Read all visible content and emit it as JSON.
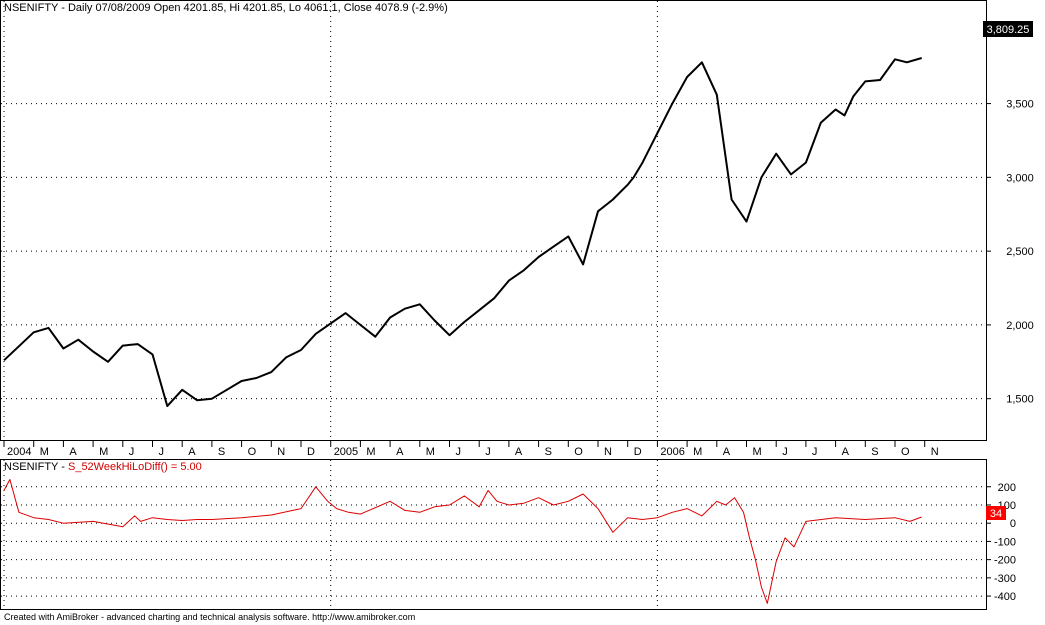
{
  "price_pane": {
    "title": "NSENIFTY - Daily 07/08/2009 Open 4201.85, Hi 4201.85, Lo 4061.1, Close 4078.9 (-2.9%)",
    "last_value_label": "3,809.25",
    "line_color": "#000000"
  },
  "indicator_pane": {
    "symbol_label": "NSENIFTY - ",
    "indicator_label": "S_52WeekHiLoDiff() = 5.00",
    "last_value_label": "34",
    "line_color": "#dd0000",
    "badge_color": "#ff0000"
  },
  "footer": "Created with AmiBroker - advanced charting and technical analysis software. http://www.amibroker.com",
  "chart_data": [
    {
      "type": "line",
      "name": "NSENIFTY",
      "ylim": [
        1220,
        4080
      ],
      "yticks": [
        1500,
        2000,
        2500,
        3000,
        3500
      ],
      "ytick_labels": [
        "1,500",
        "2,000",
        "2,500",
        "3,000",
        "3,500"
      ],
      "x_months": [
        "2004",
        "M",
        "A",
        "M",
        "J",
        "J",
        "A",
        "S",
        "O",
        "N",
        "D",
        "2005",
        "M",
        "A",
        "M",
        "J",
        "J",
        "A",
        "S",
        "O",
        "N",
        "D",
        "2006",
        "M",
        "A",
        "M",
        "J",
        "J",
        "A",
        "S",
        "O",
        "N"
      ],
      "x": [
        0,
        1.0,
        1.5,
        2,
        2.5,
        3,
        3.5,
        4,
        4.5,
        5,
        5.5,
        6,
        6.5,
        7,
        7.5,
        8,
        8.5,
        9,
        9.5,
        10,
        10.5,
        11,
        11.5,
        12,
        12.5,
        13,
        13.5,
        14,
        14.5,
        15,
        15.5,
        16,
        16.5,
        17,
        17.5,
        18,
        18.5,
        19,
        19.5,
        20,
        20.5,
        21,
        21.2,
        21.5,
        22,
        22.5,
        23,
        23.5,
        24,
        24.5,
        25,
        25.5,
        26,
        26.5,
        27,
        27.5,
        28,
        28.3,
        28.6,
        29,
        29.5,
        30,
        30.4,
        30.9
      ],
      "values": [
        1760,
        1950,
        1980,
        1840,
        1900,
        1820,
        1750,
        1860,
        1870,
        1800,
        1450,
        1560,
        1490,
        1500,
        1560,
        1620,
        1640,
        1680,
        1780,
        1830,
        1940,
        2010,
        2080,
        2000,
        1920,
        2050,
        2110,
        2140,
        2030,
        1930,
        2020,
        2100,
        2180,
        2300,
        2370,
        2460,
        2530,
        2600,
        2410,
        2770,
        2850,
        2950,
        3000,
        3100,
        3300,
        3500,
        3680,
        3780,
        3560,
        2850,
        2700,
        3000,
        3160,
        3020,
        3100,
        3370,
        3460,
        3420,
        3550,
        3650,
        3660,
        3800,
        3780,
        3809
      ],
      "grid": "dotted"
    },
    {
      "type": "line",
      "name": "S_52WeekHiLoDiff",
      "ylim": [
        -460,
        270
      ],
      "yticks": [
        -400,
        -300,
        -200,
        -100,
        0,
        100,
        200
      ],
      "ytick_labels": [
        "-400",
        "-300",
        "-200",
        "-100",
        "0",
        "100",
        "200"
      ],
      "x": [
        0,
        0.2,
        0.5,
        1.0,
        1.5,
        2.0,
        3.0,
        4.0,
        4.4,
        4.6,
        5.0,
        5.5,
        6.0,
        6.5,
        7.0,
        8.0,
        9.0,
        10.0,
        10.5,
        10.9,
        11.2,
        11.6,
        12.0,
        13.0,
        13.5,
        14.0,
        14.5,
        15.0,
        15.5,
        16.0,
        16.3,
        16.6,
        17.0,
        17.5,
        18.0,
        18.5,
        19.0,
        19.5,
        20.0,
        20.5,
        21.0,
        21.5,
        22.0,
        22.5,
        23.0,
        23.5,
        24.0,
        24.3,
        24.6,
        24.9,
        25.1,
        25.3,
        25.5,
        25.7,
        26.0,
        26.3,
        26.6,
        27.0,
        28.0,
        29.0,
        30.0,
        30.5,
        30.9
      ],
      "values": [
        180,
        240,
        60,
        30,
        20,
        0,
        10,
        -20,
        40,
        10,
        30,
        20,
        15,
        20,
        20,
        30,
        45,
        80,
        200,
        120,
        80,
        60,
        50,
        120,
        70,
        60,
        90,
        100,
        150,
        90,
        180,
        120,
        100,
        110,
        140,
        100,
        120,
        160,
        80,
        -50,
        30,
        20,
        30,
        60,
        80,
        40,
        120,
        100,
        140,
        60,
        -80,
        -200,
        -350,
        -440,
        -210,
        -80,
        -130,
        10,
        30,
        20,
        30,
        10,
        34
      ],
      "grid": "dotted"
    }
  ]
}
